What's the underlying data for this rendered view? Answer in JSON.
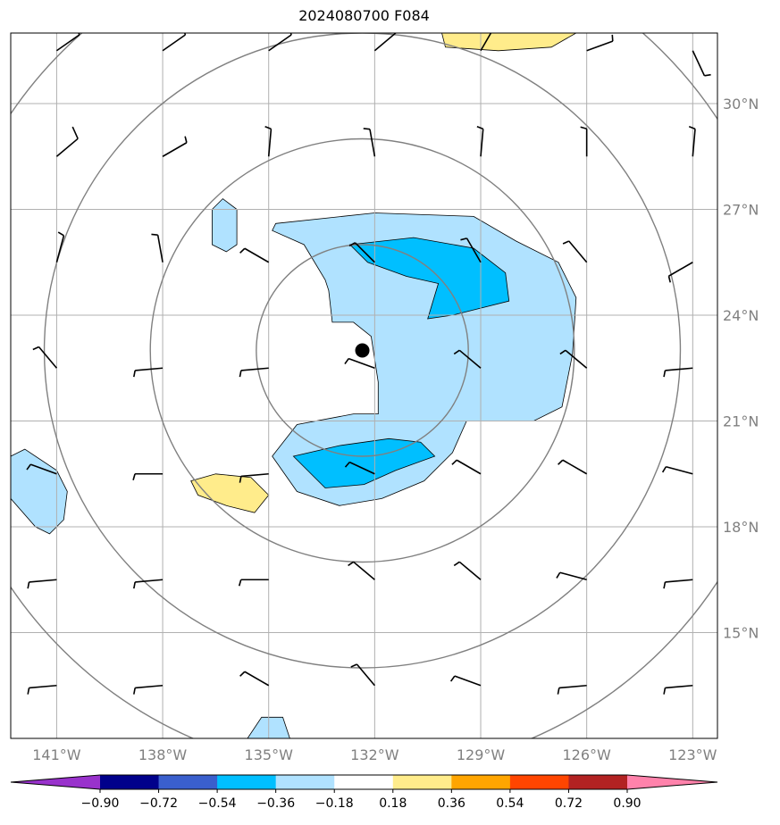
{
  "title": "2024080700 F084",
  "chart_data": {
    "type": "map",
    "title": "2024080700 F084",
    "lon_range": [
      -142.3,
      -122.3
    ],
    "lat_range": [
      12.0,
      32.0
    ],
    "lon_ticks": [
      -141,
      -138,
      -135,
      -132,
      -129,
      -126,
      -123
    ],
    "lon_tick_labels": [
      "141°W",
      "138°W",
      "135°W",
      "132°W",
      "129°W",
      "126°W",
      "123°W"
    ],
    "lat_ticks": [
      15,
      18,
      21,
      24,
      27,
      30
    ],
    "lat_tick_labels": [
      "15°N",
      "18°N",
      "21°N",
      "24°N",
      "27°N",
      "30°N"
    ],
    "grid": true,
    "storm_center": {
      "lon": -132.35,
      "lat": 23.0
    },
    "range_rings_deg": [
      3,
      6,
      9,
      12
    ],
    "colorbar": {
      "levels": [
        -0.9,
        -0.72,
        -0.54,
        -0.36,
        -0.18,
        0.18,
        0.36,
        0.54,
        0.72,
        0.9
      ],
      "labels": [
        "−0.90",
        "−0.72",
        "−0.54",
        "−0.36",
        "−0.18",
        "0.18",
        "0.36",
        "0.54",
        "0.72",
        "0.90"
      ],
      "colors": [
        "#9932cc",
        "#00008b",
        "#3a5fcd",
        "#00bfff",
        "#b0e2ff",
        "#ffffff",
        "#ffec8b",
        "#ffa500",
        "#ff4500",
        "#b22222",
        "#ff82ab"
      ],
      "extend": "both"
    },
    "shaded_regions": [
      {
        "level": "-0.36 to -0.18",
        "color": "#b0e2ff",
        "points": [
          [
            -134.8,
            26.6
          ],
          [
            -132.0,
            26.9
          ],
          [
            -129.2,
            26.8
          ],
          [
            -128.0,
            26.1
          ],
          [
            -126.8,
            25.5
          ],
          [
            -126.3,
            24.5
          ],
          [
            -126.4,
            22.9
          ],
          [
            -126.7,
            21.4
          ],
          [
            -127.5,
            21.0
          ],
          [
            -129.4,
            21.0
          ],
          [
            -129.8,
            20.1
          ],
          [
            -130.6,
            19.3
          ],
          [
            -131.8,
            18.8
          ],
          [
            -133.0,
            18.6
          ],
          [
            -134.2,
            19.0
          ],
          [
            -134.9,
            20.0
          ],
          [
            -134.2,
            20.9
          ],
          [
            -132.6,
            21.2
          ],
          [
            -131.9,
            21.2
          ],
          [
            -131.9,
            22.1
          ],
          [
            -132.1,
            23.4
          ],
          [
            -132.6,
            23.8
          ],
          [
            -133.2,
            23.8
          ],
          [
            -133.3,
            24.7
          ],
          [
            -133.4,
            25.0
          ],
          [
            -134.0,
            26.0
          ],
          [
            -134.9,
            26.4
          ]
        ]
      },
      {
        "level": "-0.54 to -0.36",
        "color": "#00bfff",
        "points": [
          [
            -132.7,
            26.0
          ],
          [
            -130.9,
            26.2
          ],
          [
            -129.2,
            25.9
          ],
          [
            -128.3,
            25.2
          ],
          [
            -128.2,
            24.4
          ],
          [
            -129.8,
            24.0
          ],
          [
            -130.5,
            23.9
          ],
          [
            -130.2,
            24.9
          ],
          [
            -131.1,
            25.1
          ],
          [
            -132.2,
            25.5
          ]
        ]
      },
      {
        "level": "-0.54 to -0.36",
        "color": "#00bfff",
        "points": [
          [
            -134.3,
            20.0
          ],
          [
            -133.0,
            20.3
          ],
          [
            -131.6,
            20.5
          ],
          [
            -130.7,
            20.4
          ],
          [
            -130.3,
            20.0
          ],
          [
            -131.4,
            19.6
          ],
          [
            -132.3,
            19.2
          ],
          [
            -133.4,
            19.1
          ]
        ]
      },
      {
        "level": "-0.36 to -0.18",
        "color": "#b0e2ff",
        "points": [
          [
            -136.3,
            27.3
          ],
          [
            -135.9,
            27.0
          ],
          [
            -135.9,
            26.0
          ],
          [
            -136.2,
            25.8
          ],
          [
            -136.6,
            26.0
          ],
          [
            -136.6,
            27.0
          ]
        ]
      },
      {
        "level": "-0.36 to -0.18",
        "color": "#b0e2ff",
        "points": [
          [
            -142.3,
            20.0
          ],
          [
            -141.9,
            20.2
          ],
          [
            -141.0,
            19.6
          ],
          [
            -140.7,
            19.0
          ],
          [
            -140.8,
            18.2
          ],
          [
            -141.2,
            17.8
          ],
          [
            -141.6,
            18.0
          ],
          [
            -142.3,
            18.8
          ]
        ]
      },
      {
        "level": "-0.36 to -0.18",
        "color": "#b0e2ff",
        "points": [
          [
            -135.6,
            12.0
          ],
          [
            -135.2,
            12.6
          ],
          [
            -134.6,
            12.6
          ],
          [
            -134.4,
            12.0
          ]
        ]
      },
      {
        "level": "0.18 to 0.36",
        "color": "#ffec8b",
        "points": [
          [
            -136.5,
            19.5
          ],
          [
            -135.5,
            19.4
          ],
          [
            -135.0,
            18.9
          ],
          [
            -135.4,
            18.4
          ],
          [
            -136.2,
            18.6
          ],
          [
            -137.0,
            18.9
          ],
          [
            -137.2,
            19.3
          ]
        ]
      },
      {
        "level": "0.18 to 0.36",
        "color": "#ffec8b",
        "points": [
          [
            -130.1,
            32.0
          ],
          [
            -126.3,
            32.0
          ],
          [
            -127.0,
            31.6
          ],
          [
            -128.5,
            31.5
          ],
          [
            -130.0,
            31.6
          ]
        ]
      }
    ],
    "wind_barbs": {
      "lons": [
        -141,
        -138,
        -135,
        -132,
        -129,
        -126,
        -123
      ],
      "lats": [
        13.5,
        16.5,
        19.5,
        22.5,
        25.5,
        28.5,
        31.5
      ],
      "rows": [
        [
          [
            265,
            8
          ],
          [
            265,
            8
          ],
          [
            300,
            8
          ],
          [
            320,
            8
          ],
          [
            290,
            8
          ],
          [
            265,
            8
          ],
          [
            265,
            8
          ]
        ],
        [
          [
            265,
            8
          ],
          [
            265,
            8
          ],
          [
            270,
            8
          ],
          [
            310,
            8
          ],
          [
            310,
            8
          ],
          [
            285,
            8
          ],
          [
            265,
            8
          ]
        ],
        [
          [
            290,
            8
          ],
          [
            270,
            8
          ],
          [
            265,
            8
          ],
          [
            295,
            8
          ],
          [
            300,
            8
          ],
          [
            300,
            8
          ],
          [
            285,
            8
          ]
        ],
        [
          [
            320,
            8
          ],
          [
            265,
            8
          ],
          [
            265,
            8
          ],
          [
            290,
            8
          ],
          [
            310,
            8
          ],
          [
            310,
            8
          ],
          [
            265,
            8
          ]
        ],
        [
          [
            15,
            8
          ],
          [
            350,
            8
          ],
          [
            300,
            8
          ],
          [
            315,
            8
          ],
          [
            330,
            8
          ],
          [
            320,
            8
          ],
          [
            240,
            8
          ]
        ],
        [
          [
            50,
            13
          ],
          [
            60,
            8
          ],
          [
            5,
            8
          ],
          [
            350,
            8
          ],
          [
            5,
            8
          ],
          [
            0,
            8
          ],
          [
            5,
            8
          ]
        ],
        [
          [
            55,
            13
          ],
          [
            55,
            13
          ],
          [
            55,
            13
          ],
          [
            50,
            8
          ],
          [
            30,
            8
          ],
          [
            70,
            8
          ],
          [
            155,
            8
          ]
        ]
      ]
    }
  }
}
